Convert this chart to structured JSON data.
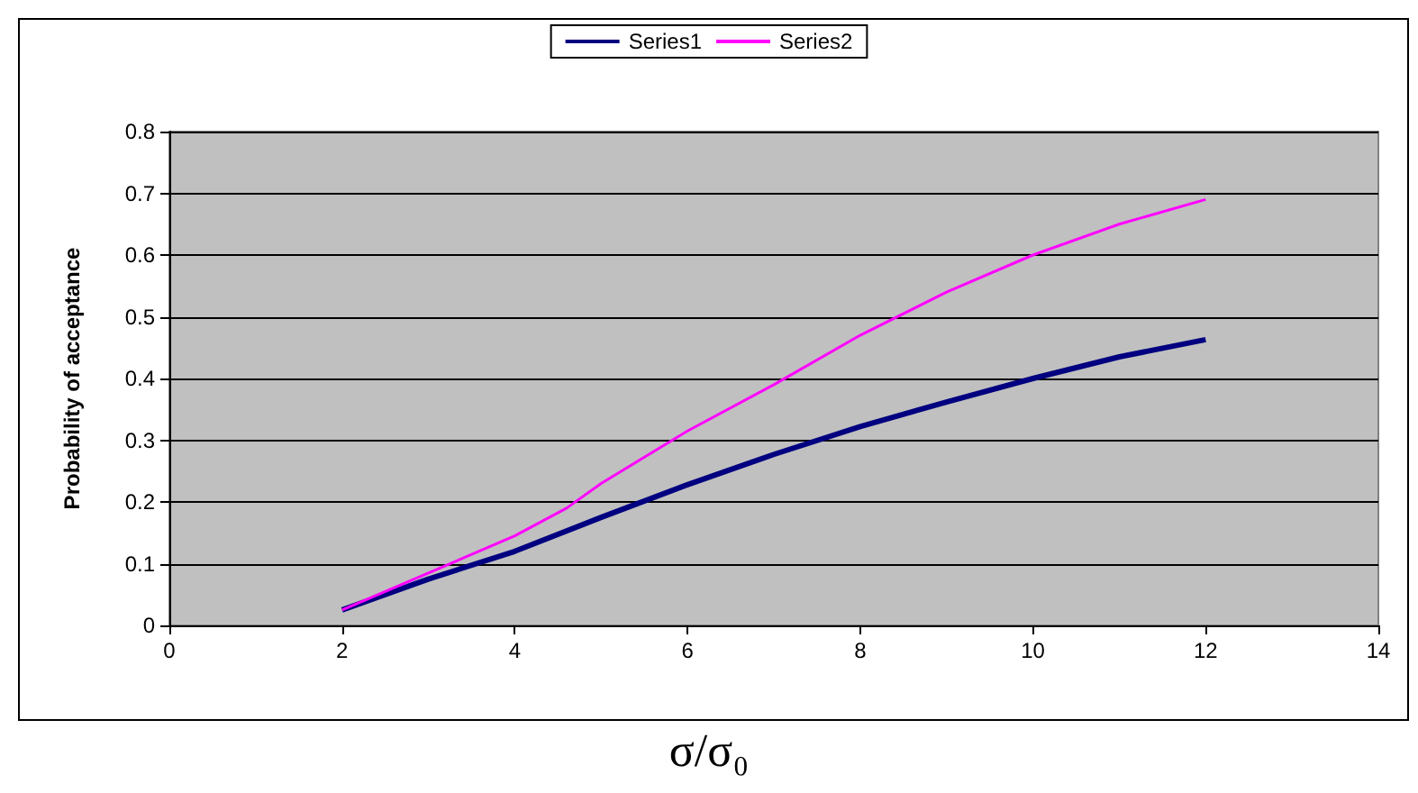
{
  "chart_data": {
    "type": "line",
    "xlabel": "σ/σ₀",
    "ylabel": "Probability of acceptance",
    "xlim": [
      0,
      14
    ],
    "xticks": [
      0,
      2,
      4,
      6,
      8,
      10,
      12,
      14
    ],
    "ylim": [
      0,
      0.8
    ],
    "yticks": [
      0,
      0.1,
      0.2,
      0.3,
      0.4,
      0.5,
      0.6,
      0.7,
      0.8
    ],
    "grid": "y",
    "legend": "top",
    "marker": "none",
    "line_style": "solid",
    "series": [
      {
        "name": "Series1",
        "color": "#000080",
        "x": [
          2,
          3,
          4,
          5,
          6,
          7,
          8,
          9,
          10,
          11,
          12
        ],
        "values": [
          0.025,
          0.075,
          0.12,
          0.175,
          0.228,
          0.277,
          0.322,
          0.362,
          0.4,
          0.435,
          0.463
        ]
      },
      {
        "name": "Series2",
        "color": "#ff00ff",
        "x": [
          2,
          3,
          4,
          4.6,
          5,
          6,
          7,
          8,
          9,
          10,
          11,
          12
        ],
        "values": [
          0.025,
          0.085,
          0.145,
          0.19,
          0.23,
          0.315,
          0.39,
          0.47,
          0.54,
          0.6,
          0.65,
          0.69
        ]
      }
    ]
  }
}
